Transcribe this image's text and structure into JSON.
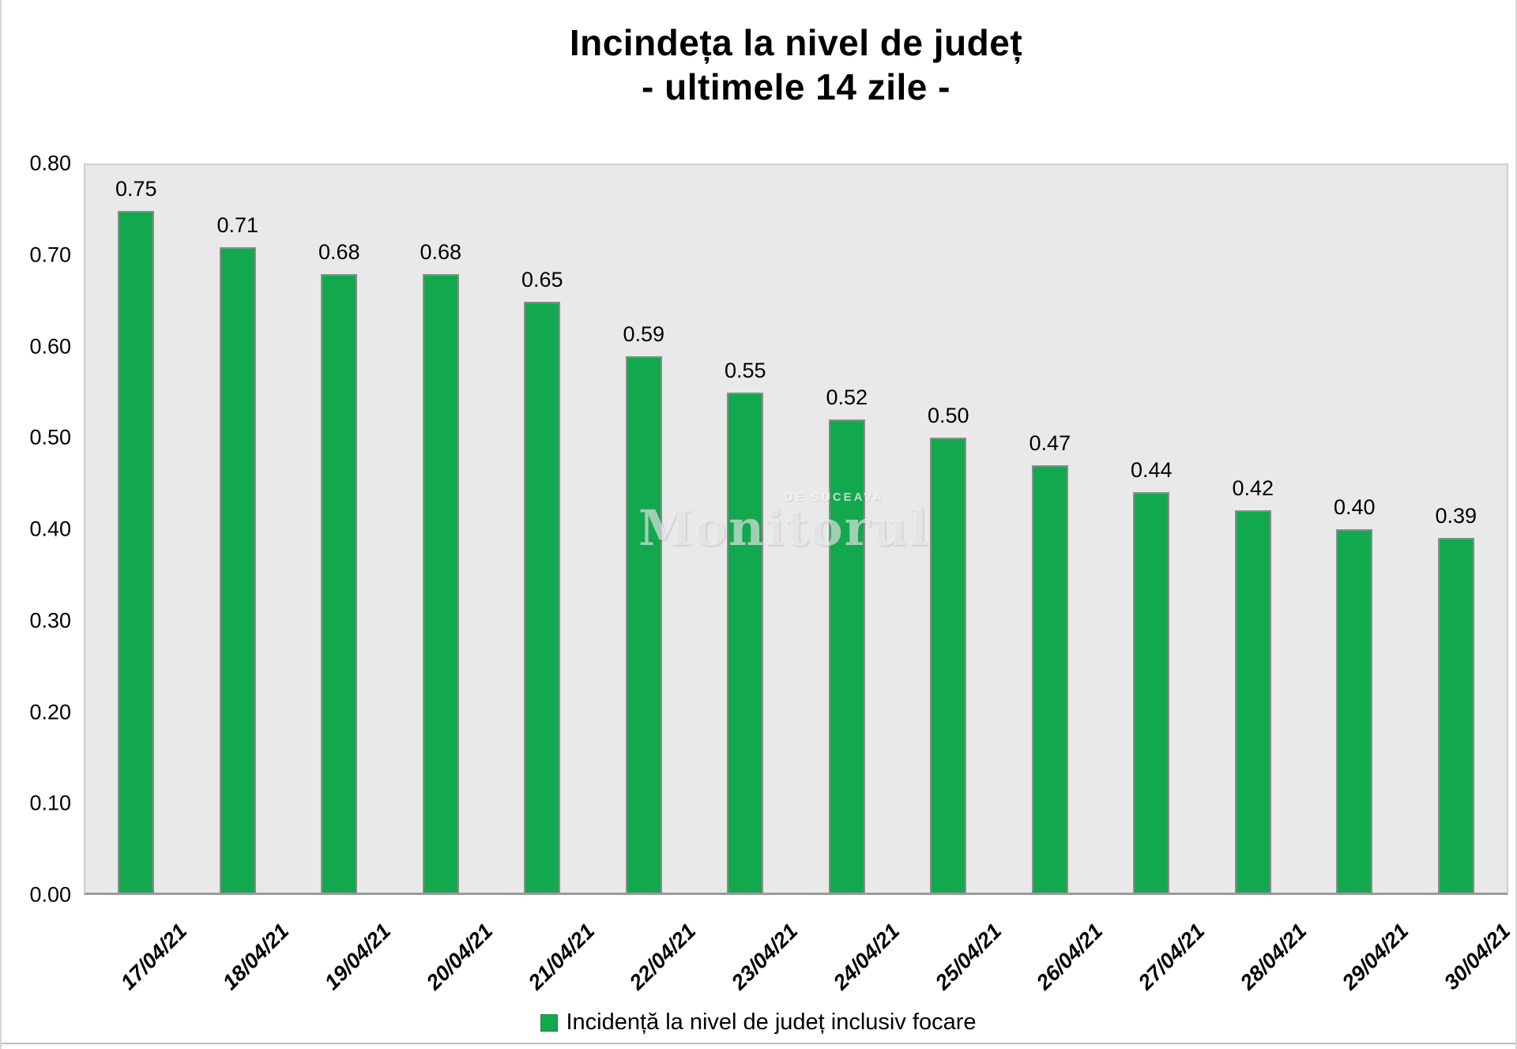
{
  "title": {
    "line1": "Incindeța la nivel de județ",
    "line2": "- ultimele 14 zile -"
  },
  "watermark": {
    "small": "DE SUCEAVA",
    "large": "Monitorul"
  },
  "colors": {
    "bar_fill": "#12a94e",
    "bar_border": "#8c8c8c",
    "plot_bg": "#e9e9e9",
    "plot_border": "#cfcfcf",
    "axis_line": "#9a9a9a",
    "text": "#000000"
  },
  "chart_data": {
    "type": "bar",
    "title": "Incindeța la nivel de județ - ultimele 14 zile -",
    "categories": [
      "17/04/21",
      "18/04/21",
      "19/04/21",
      "20/04/21",
      "21/04/21",
      "22/04/21",
      "23/04/21",
      "24/04/21",
      "25/04/21",
      "26/04/21",
      "27/04/21",
      "28/04/21",
      "29/04/21",
      "30/04/21"
    ],
    "values": [
      0.75,
      0.71,
      0.68,
      0.68,
      0.65,
      0.59,
      0.55,
      0.52,
      0.5,
      0.47,
      0.44,
      0.42,
      0.4,
      0.39
    ],
    "value_labels": [
      "0.75",
      "0.71",
      "0.68",
      "0.68",
      "0.65",
      "0.59",
      "0.55",
      "0.52",
      "0.50",
      "0.47",
      "0.44",
      "0.42",
      "0.40",
      "0.39"
    ],
    "xlabel": "",
    "ylabel": "",
    "ylim": [
      0.0,
      0.8
    ],
    "yticks": [
      "0.00",
      "0.10",
      "0.20",
      "0.30",
      "0.40",
      "0.50",
      "0.60",
      "0.70",
      "0.80"
    ],
    "grid": false,
    "bar_color": "#12a94e",
    "legend": {
      "position": "bottom",
      "entries": [
        "Incidență la nivel de județ inclusiv focare"
      ]
    }
  }
}
